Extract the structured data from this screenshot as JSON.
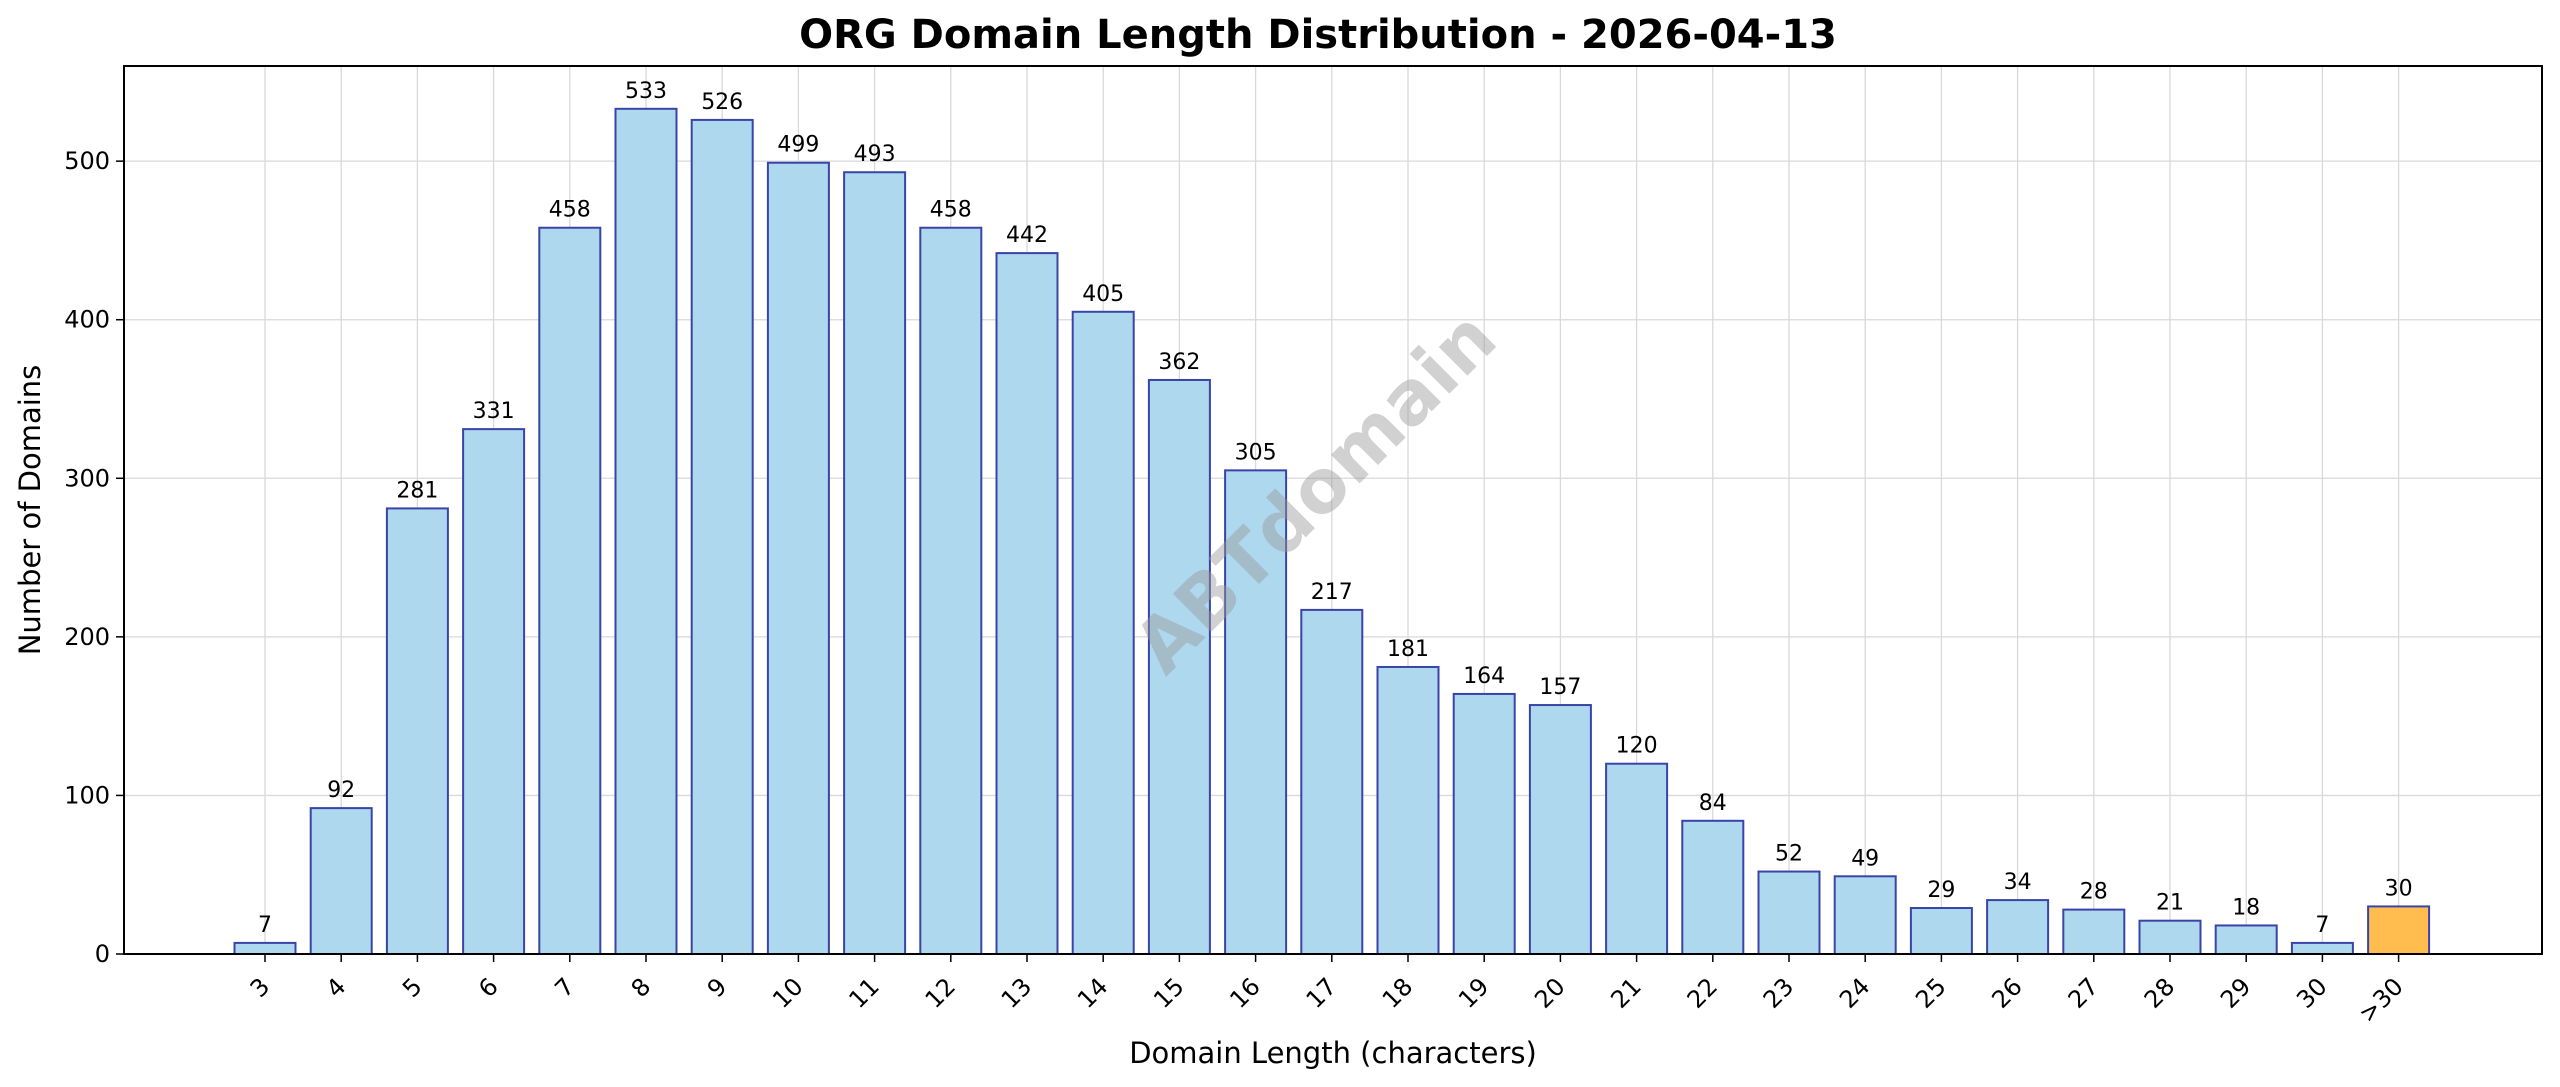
{
  "chart_data": {
    "type": "bar",
    "title": "ORG Domain Length Distribution - 2026-04-13",
    "xlabel": "Domain Length (characters)",
    "ylabel": "Number of Domains",
    "watermark": "ABTdomain",
    "categories": [
      "3",
      "4",
      "5",
      "6",
      "7",
      "8",
      "9",
      "10",
      "11",
      "12",
      "13",
      "14",
      "15",
      "16",
      "17",
      "18",
      "19",
      "20",
      "21",
      "22",
      "23",
      "24",
      "25",
      "26",
      "27",
      "28",
      "29",
      "30",
      ">30"
    ],
    "values": [
      7,
      92,
      281,
      331,
      458,
      533,
      526,
      499,
      493,
      458,
      442,
      405,
      362,
      305,
      217,
      181,
      164,
      157,
      120,
      84,
      52,
      49,
      29,
      34,
      28,
      21,
      18,
      7,
      30
    ],
    "highlight_categories": [
      ">30"
    ],
    "ylim": [
      0,
      560
    ],
    "yticks": [
      0,
      100,
      200,
      300,
      400,
      500
    ],
    "grid": true,
    "colors": {
      "bar_fill": "#add8ee",
      "bar_edge": "#3a44a8",
      "highlight_fill": "#ffbd4f",
      "grid": "#d9d9d9"
    }
  }
}
